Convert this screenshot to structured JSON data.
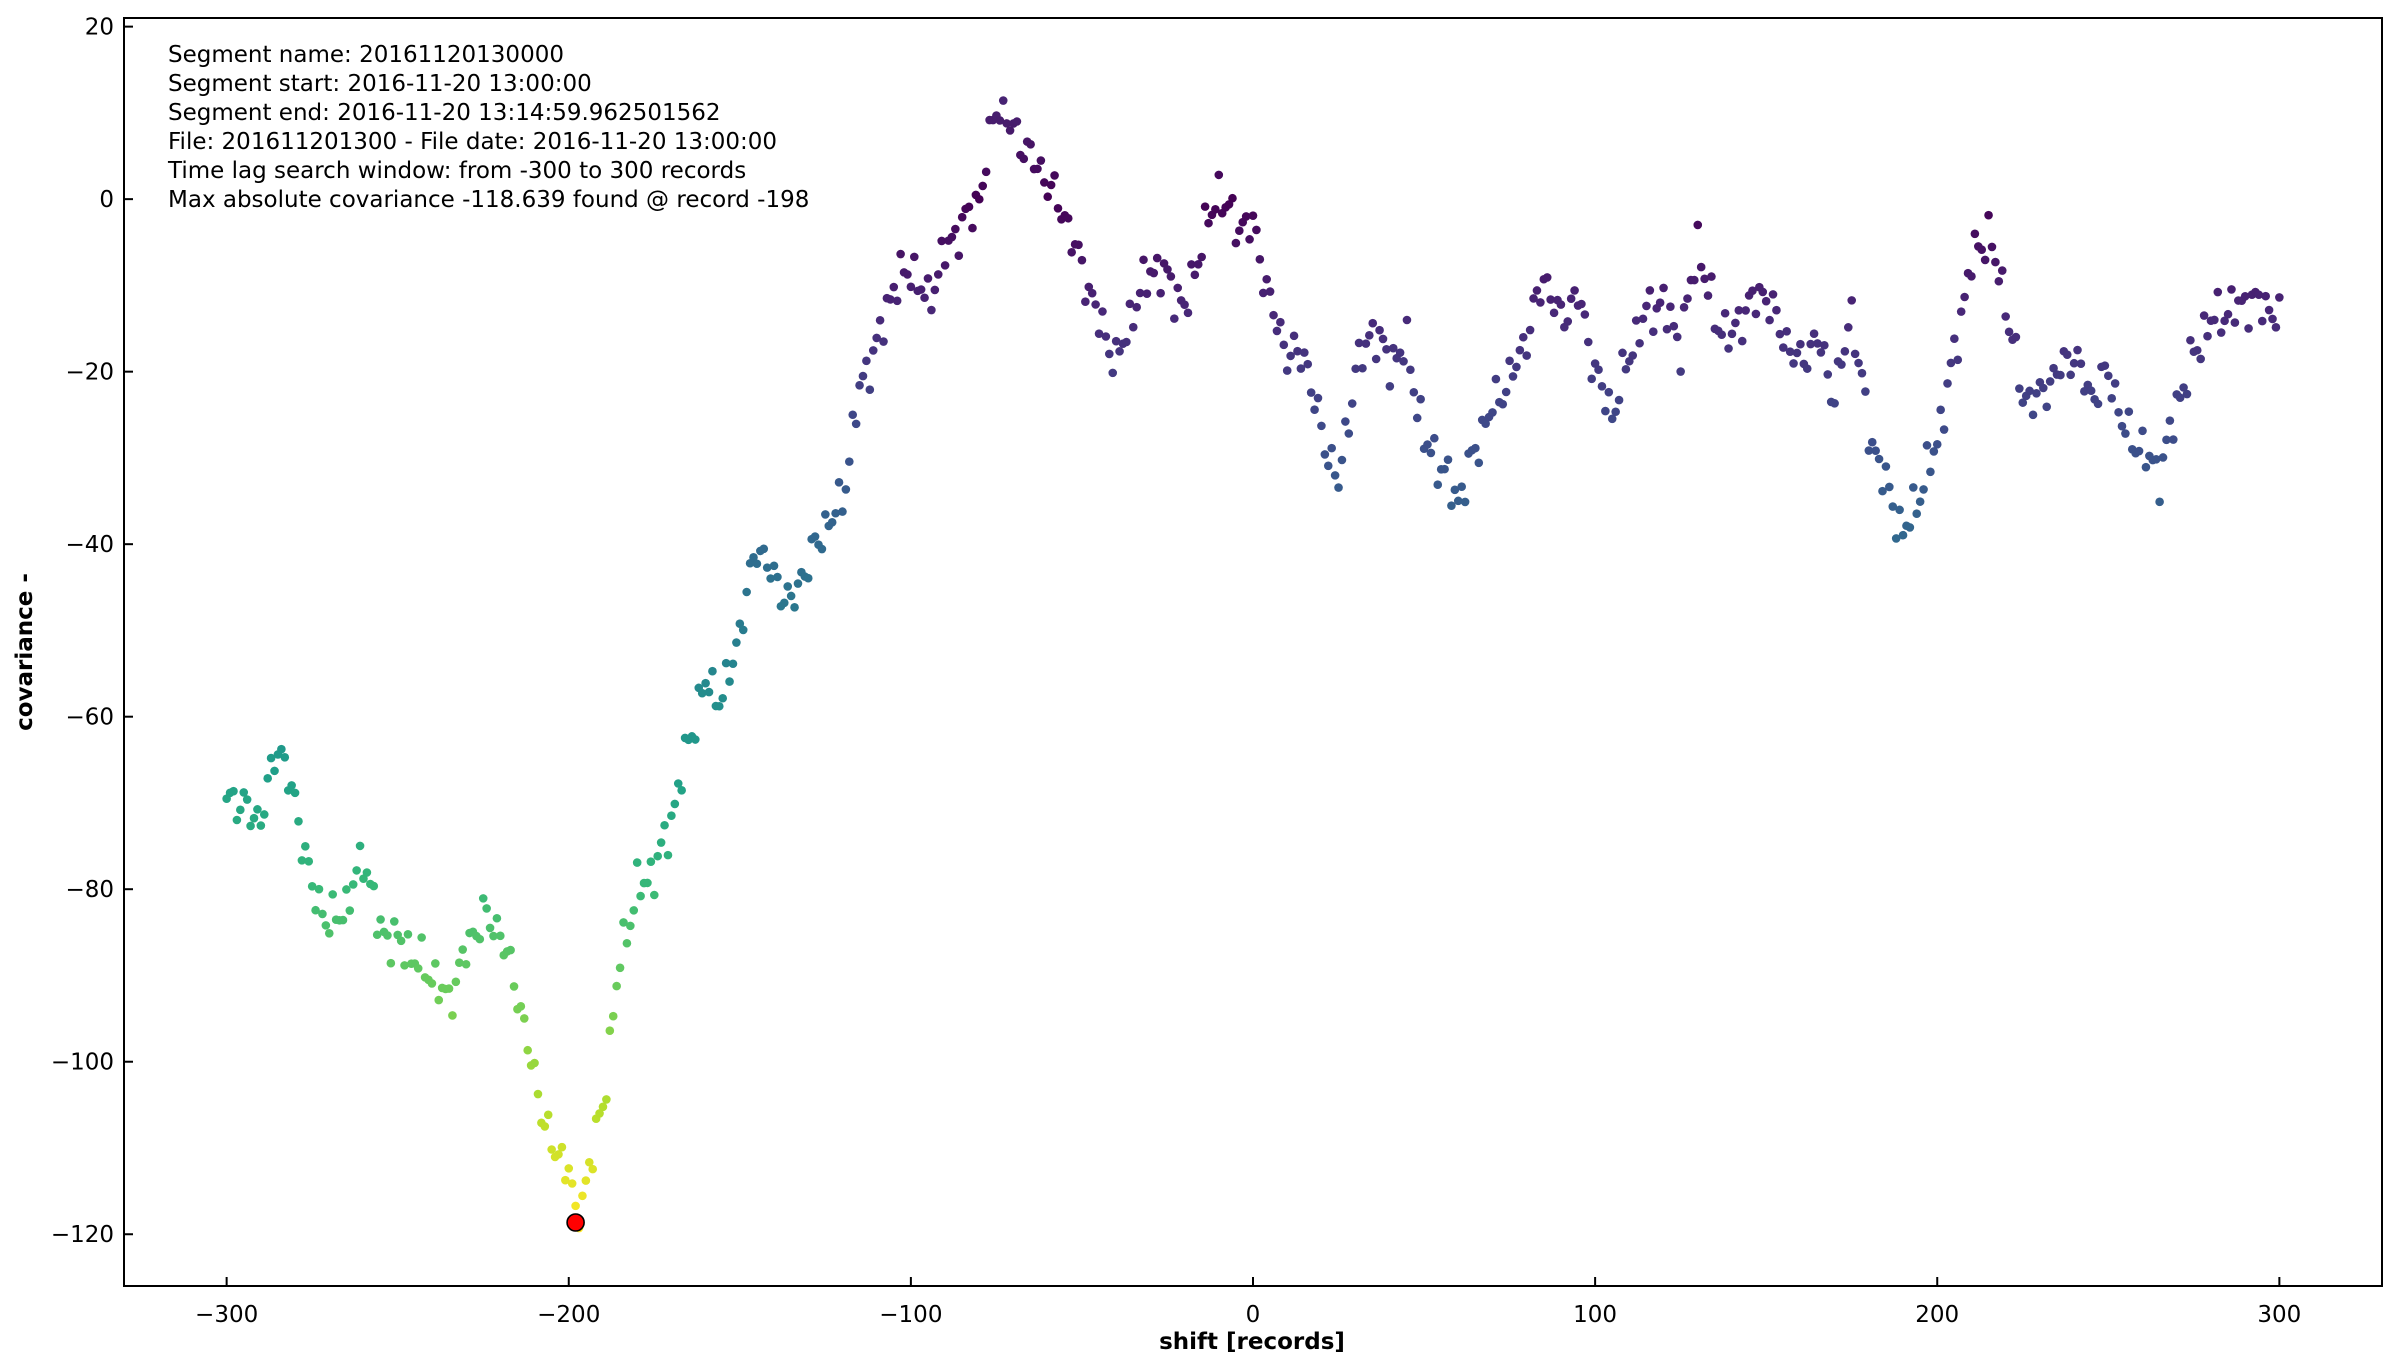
{
  "chart_data": {
    "type": "scatter",
    "title": "",
    "xlabel": "shift [records]",
    "ylabel": "covariance  -",
    "xlim": [
      -330,
      330
    ],
    "ylim": [
      -126,
      21
    ],
    "xticks": [
      -300,
      -200,
      -100,
      0,
      100,
      200,
      300
    ],
    "yticks": [
      20,
      0,
      -20,
      -40,
      -60,
      -80,
      -100,
      -120
    ],
    "colormap": "viridis (color by absolute covariance: yellow = largest, purple = smallest)",
    "grid": false,
    "info_text": [
      "Segment name: 20161120130000",
      "Segment start: 2016-11-20 13:00:00",
      "Segment end: 2016-11-20 13:14:59.962501562",
      "File: 201611201300 - File date: 2016-11-20 13:00:00",
      "Time lag search window: from -300 to 300 records",
      "Max absolute covariance -118.639 found @ record -198"
    ],
    "highlight": {
      "x": -198,
      "y": -118.639,
      "color": "#ff0000"
    },
    "series": [
      {
        "x": [
          -300,
          -290,
          -285,
          -280,
          -275,
          -270,
          -265,
          -260,
          -255,
          -250,
          -245,
          -240,
          -235,
          -230,
          -225,
          -220,
          -215,
          -210,
          -205,
          -200,
          -198,
          -195,
          -190,
          -185,
          -180,
          -175,
          -170,
          -165,
          -160,
          -155,
          -150,
          -145,
          -140,
          -135,
          -130,
          -125,
          -120,
          -115,
          -110,
          -105,
          -100,
          -95,
          -90,
          -85,
          -80,
          -75,
          -70,
          -65,
          -60,
          -55,
          -50,
          -45,
          -40,
          -35,
          -30,
          -25,
          -20,
          -15,
          -10,
          -5,
          0,
          5,
          10,
          15,
          20,
          25,
          30,
          35,
          40,
          45,
          50,
          55,
          60,
          65,
          70,
          75,
          80,
          85,
          90,
          95,
          100,
          105,
          110,
          115,
          120,
          125,
          130,
          135,
          140,
          145,
          150,
          155,
          160,
          165,
          170,
          175,
          180,
          185,
          190,
          195,
          200,
          205,
          210,
          215,
          220,
          225,
          230,
          235,
          240,
          245,
          250,
          255,
          260,
          265,
          270,
          275,
          280,
          285,
          290,
          295,
          300
        ],
        "y": [
          -69,
          -72,
          -63,
          -70,
          -80,
          -84,
          -82,
          -76,
          -85,
          -86,
          -88,
          -90,
          -93,
          -87,
          -83,
          -85,
          -92,
          -102,
          -110,
          -112,
          -118.639,
          -114,
          -105,
          -88,
          -80,
          -78,
          -72,
          -63,
          -56,
          -58,
          -50,
          -40,
          -44,
          -47,
          -42,
          -38,
          -35,
          -22,
          -17,
          -10,
          -8,
          -12,
          -6,
          -3,
          0,
          11,
          8,
          5,
          2,
          -2,
          -8,
          -14,
          -19,
          -13,
          -8,
          -9,
          -13,
          -5,
          1,
          -3,
          -3,
          -12,
          -18,
          -18,
          -27,
          -33,
          -20,
          -15,
          -19,
          -17,
          -28,
          -31,
          -35,
          -29,
          -24,
          -21,
          -16,
          -9,
          -14,
          -11,
          -20,
          -25,
          -18,
          -13,
          -12,
          -17,
          -5,
          -14,
          -16,
          -12,
          -11,
          -16,
          -19,
          -16,
          -23,
          -13,
          -27,
          -33,
          -39,
          -34,
          -28,
          -18,
          -7,
          -4,
          -12,
          -23,
          -23,
          -20,
          -18,
          -23,
          -20,
          -27,
          -29,
          -32,
          -24,
          -18,
          -14,
          -13,
          -12,
          -12,
          -14
        ],
        "color_metric": "abs(y)"
      }
    ]
  }
}
